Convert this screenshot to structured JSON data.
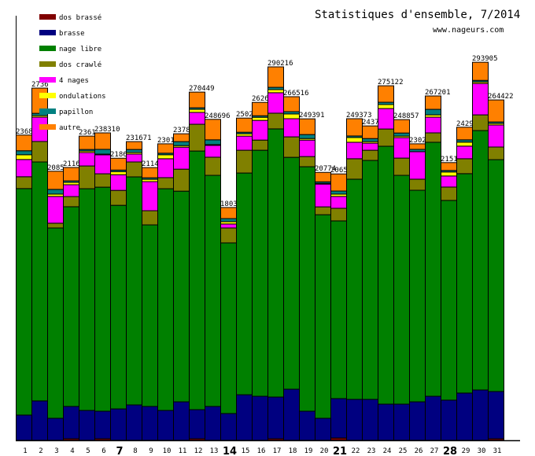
{
  "chart_data": {
    "type": "bar",
    "stacked": true,
    "title": "Statistiques d'ensemble, 7/2014",
    "subtitle": "www.nageurs.com",
    "xlabel": "",
    "ylabel": "",
    "ylim": [
      0,
      300000
    ],
    "grid": false,
    "legend_position": "top-left",
    "categories": [
      "1",
      "2",
      "3",
      "4",
      "5",
      "6",
      "7",
      "8",
      "9",
      "10",
      "11",
      "12",
      "13",
      "14",
      "15",
      "16",
      "17",
      "18",
      "19",
      "20",
      "21",
      "22",
      "23",
      "24",
      "25",
      "26",
      "27",
      "28",
      "29",
      "30",
      "31"
    ],
    "highlighted_categories": [
      "7",
      "14",
      "21",
      "28"
    ],
    "bar_labels": [
      "2368",
      "2736",
      "2085",
      "2116",
      "2361",
      "238310",
      "2186",
      "231671",
      "2114",
      "2301",
      "2378",
      "270449",
      "248696",
      "1803",
      "2502",
      "2626",
      "290216",
      "266516",
      "249391",
      "20774",
      "2065",
      "249373",
      "2437",
      "275122",
      "248857",
      "2302",
      "267201",
      "2151",
      "2429",
      "293905",
      "264422"
    ],
    "series": [
      {
        "name": "dos brassé",
        "color": "#800000",
        "values": [
          0,
          0,
          0,
          1200,
          0,
          1200,
          0,
          0,
          0,
          0,
          0,
          1200,
          0,
          0,
          0,
          0,
          1200,
          0,
          0,
          0,
          1800,
          0,
          0,
          0,
          0,
          0,
          0,
          0,
          0,
          0,
          1200
        ]
      },
      {
        "name": "brasse",
        "color": "#000080",
        "values": [
          19600,
          30600,
          17100,
          25100,
          23200,
          21400,
          24400,
          27500,
          26300,
          23200,
          29900,
          22600,
          26300,
          20800,
          35400,
          34200,
          32400,
          39700,
          22600,
          17100,
          30600,
          31800,
          31800,
          28100,
          28100,
          29900,
          34200,
          31200,
          36700,
          39100,
          36700
        ]
      },
      {
        "name": "nage libre",
        "color": "#008000",
        "values": [
          176000,
          185700,
          147900,
          155200,
          172300,
          174100,
          158200,
          177200,
          141100,
          172300,
          163700,
          201000,
          179600,
          132600,
          172300,
          191200,
          208400,
          180200,
          190000,
          158200,
          138100,
          171100,
          185700,
          200400,
          177800,
          164400,
          197400,
          155200,
          170500,
          201600,
          180200
        ]
      },
      {
        "name": "dos crawlé",
        "color": "#808000",
        "values": [
          9200,
          15900,
          3700,
          7900,
          17700,
          10400,
          11600,
          11600,
          11000,
          8600,
          17100,
          20800,
          14100,
          11600,
          17700,
          7900,
          12200,
          15900,
          7900,
          6100,
          9800,
          15900,
          7900,
          13400,
          13400,
          8600,
          7300,
          10400,
          11600,
          12200,
          9800
        ]
      },
      {
        "name": "4 nages",
        "color": "#ff00ff",
        "values": [
          13400,
          18900,
          20800,
          9200,
          10400,
          14700,
          12200,
          6100,
          22600,
          14700,
          17100,
          9200,
          9200,
          3100,
          11000,
          15300,
          15900,
          14100,
          12800,
          17700,
          9200,
          12800,
          5500,
          15900,
          15900,
          21400,
          12200,
          8600,
          9800,
          24400,
          17100
        ]
      },
      {
        "name": "ondulations",
        "color": "#ffff00",
        "values": [
          3700,
          1200,
          1800,
          1800,
          1200,
          600,
          2400,
          1200,
          1800,
          3100,
          1200,
          2400,
          600,
          1800,
          1800,
          2400,
          2400,
          3700,
          1200,
          600,
          1800,
          3700,
          1200,
          3100,
          1200,
          0,
          1800,
          3100,
          3100,
          1200,
          1200
        ]
      },
      {
        "name": "papillon",
        "color": "#008080",
        "values": [
          3100,
          1800,
          3700,
          1200,
          1200,
          3700,
          1200,
          2400,
          1200,
          1200,
          3100,
          1200,
          3700,
          2400,
          1200,
          1200,
          1800,
          1800,
          3100,
          1200,
          2400,
          1200,
          2400,
          1800,
          2400,
          1800,
          4300,
          1200,
          1800,
          1200,
          1200
        ]
      },
      {
        "name": "autre",
        "color": "#ff8000",
        "values": [
          12200,
          19600,
          14100,
          10400,
          10400,
          12800,
          9200,
          6100,
          7900,
          7300,
          6100,
          12200,
          15900,
          8600,
          11000,
          10400,
          15900,
          11600,
          12200,
          7300,
          13300,
          13400,
          9800,
          12800,
          10400,
          4300,
          10400,
          6100,
          9800,
          14100,
          17100
        ]
      }
    ]
  }
}
